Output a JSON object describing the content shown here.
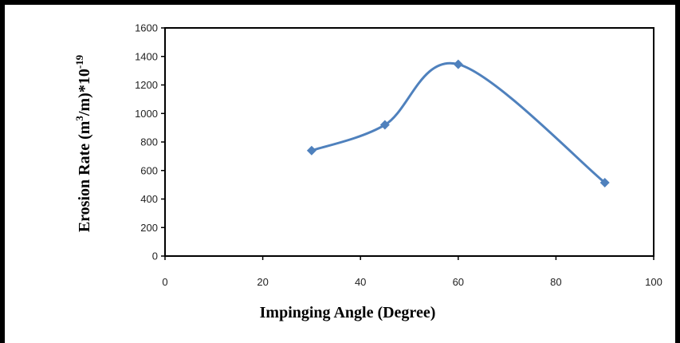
{
  "chart_data": {
    "type": "line",
    "smooth": true,
    "title": "",
    "xlabel": "Impinging Angle (Degree)",
    "ylabel": {
      "text": "Erosion Rate (m",
      "sup1": "3",
      "mid": "/m)*10",
      "sup2": "-19"
    },
    "xlim": [
      0,
      100
    ],
    "ylim": [
      0,
      1600
    ],
    "x_ticks": [
      "0",
      "20",
      "40",
      "60",
      "80",
      "100"
    ],
    "y_ticks": [
      "0",
      "200",
      "400",
      "600",
      "800",
      "1000",
      "1200",
      "1400",
      "1600"
    ],
    "grid": false,
    "legend": "none",
    "series": [
      {
        "x": [
          30,
          45,
          60,
          90
        ],
        "y": [
          740,
          920,
          1345,
          515
        ],
        "color": "#4f81bd"
      }
    ]
  }
}
